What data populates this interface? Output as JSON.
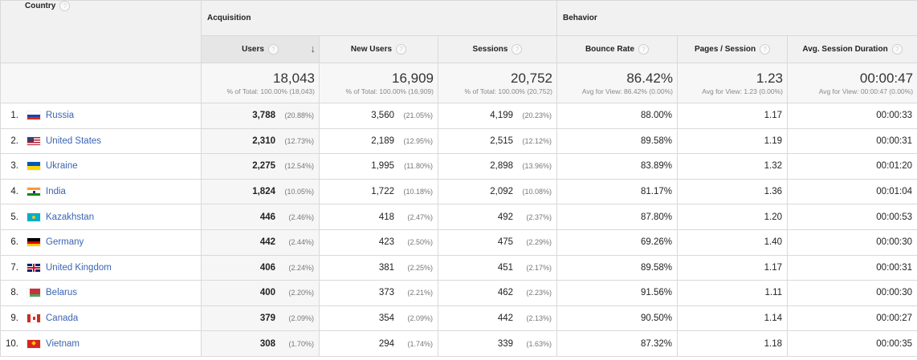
{
  "headers": {
    "country": "Country",
    "acquisition": "Acquisition",
    "behavior": "Behavior",
    "users": "Users",
    "new_users": "New Users",
    "sessions": "Sessions",
    "bounce_rate": "Bounce Rate",
    "pages_session": "Pages / Session",
    "avg_duration": "Avg. Session Duration",
    "help_glyph": "?",
    "sort_glyph": "↓"
  },
  "totals": {
    "users": {
      "value": "18,043",
      "sub": "% of Total: 100.00% (18,043)"
    },
    "new_users": {
      "value": "16,909",
      "sub": "% of Total: 100.00% (16,909)"
    },
    "sessions": {
      "value": "20,752",
      "sub": "% of Total: 100.00% (20,752)"
    },
    "bounce_rate": {
      "value": "86.42%",
      "sub": "Avg for View: 86.42% (0.00%)"
    },
    "pages_session": {
      "value": "1.23",
      "sub": "Avg for View: 1.23 (0.00%)"
    },
    "avg_duration": {
      "value": "00:00:47",
      "sub": "Avg for View: 00:00:47 (0.00%)"
    }
  },
  "rows": [
    {
      "idx": "1.",
      "country": "Russia",
      "flag": "russia",
      "users": "3,788",
      "users_pct": "(20.88%)",
      "new_users": "3,560",
      "new_users_pct": "(21.05%)",
      "sessions": "4,199",
      "sessions_pct": "(20.23%)",
      "bounce": "88.00%",
      "pages": "1.17",
      "duration": "00:00:33"
    },
    {
      "idx": "2.",
      "country": "United States",
      "flag": "usa",
      "users": "2,310",
      "users_pct": "(12.73%)",
      "new_users": "2,189",
      "new_users_pct": "(12.95%)",
      "sessions": "2,515",
      "sessions_pct": "(12.12%)",
      "bounce": "89.58%",
      "pages": "1.19",
      "duration": "00:00:31"
    },
    {
      "idx": "3.",
      "country": "Ukraine",
      "flag": "ukraine",
      "users": "2,275",
      "users_pct": "(12.54%)",
      "new_users": "1,995",
      "new_users_pct": "(11.80%)",
      "sessions": "2,898",
      "sessions_pct": "(13.96%)",
      "bounce": "83.89%",
      "pages": "1.32",
      "duration": "00:01:20"
    },
    {
      "idx": "4.",
      "country": "India",
      "flag": "india",
      "users": "1,824",
      "users_pct": "(10.05%)",
      "new_users": "1,722",
      "new_users_pct": "(10.18%)",
      "sessions": "2,092",
      "sessions_pct": "(10.08%)",
      "bounce": "81.17%",
      "pages": "1.36",
      "duration": "00:01:04"
    },
    {
      "idx": "5.",
      "country": "Kazakhstan",
      "flag": "kazakhstan",
      "users": "446",
      "users_pct": "(2.46%)",
      "new_users": "418",
      "new_users_pct": "(2.47%)",
      "sessions": "492",
      "sessions_pct": "(2.37%)",
      "bounce": "87.80%",
      "pages": "1.20",
      "duration": "00:00:53"
    },
    {
      "idx": "6.",
      "country": "Germany",
      "flag": "germany",
      "users": "442",
      "users_pct": "(2.44%)",
      "new_users": "423",
      "new_users_pct": "(2.50%)",
      "sessions": "475",
      "sessions_pct": "(2.29%)",
      "bounce": "69.26%",
      "pages": "1.40",
      "duration": "00:00:30"
    },
    {
      "idx": "7.",
      "country": "United Kingdom",
      "flag": "uk",
      "users": "406",
      "users_pct": "(2.24%)",
      "new_users": "381",
      "new_users_pct": "(2.25%)",
      "sessions": "451",
      "sessions_pct": "(2.17%)",
      "bounce": "89.58%",
      "pages": "1.17",
      "duration": "00:00:31"
    },
    {
      "idx": "8.",
      "country": "Belarus",
      "flag": "belarus",
      "users": "400",
      "users_pct": "(2.20%)",
      "new_users": "373",
      "new_users_pct": "(2.21%)",
      "sessions": "462",
      "sessions_pct": "(2.23%)",
      "bounce": "91.56%",
      "pages": "1.11",
      "duration": "00:00:30"
    },
    {
      "idx": "9.",
      "country": "Canada",
      "flag": "canada",
      "users": "379",
      "users_pct": "(2.09%)",
      "new_users": "354",
      "new_users_pct": "(2.09%)",
      "sessions": "442",
      "sessions_pct": "(2.13%)",
      "bounce": "90.50%",
      "pages": "1.14",
      "duration": "00:00:27"
    },
    {
      "idx": "10.",
      "country": "Vietnam",
      "flag": "vietnam",
      "users": "308",
      "users_pct": "(1.70%)",
      "new_users": "294",
      "new_users_pct": "(1.74%)",
      "sessions": "339",
      "sessions_pct": "(1.63%)",
      "bounce": "87.32%",
      "pages": "1.18",
      "duration": "00:00:35"
    }
  ],
  "colors": {
    "link": "#3b64b3",
    "header_bg": "#f1f1f1",
    "border": "#d9d9d9"
  }
}
